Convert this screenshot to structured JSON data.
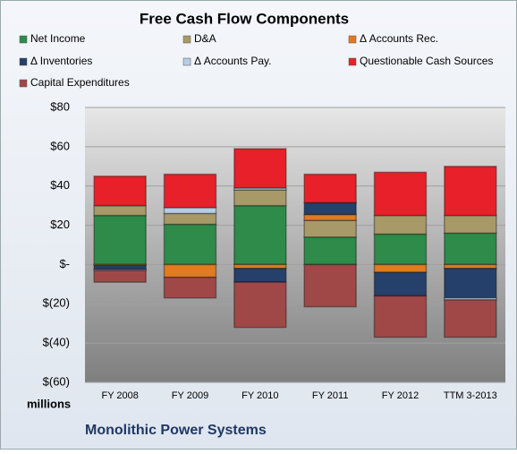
{
  "chart_data": {
    "type": "stacked-bar",
    "title": "Free Cash Flow Components",
    "y_unit_label": "millions",
    "company": "Monolithic Power Systems",
    "categories": [
      "FY 2008",
      "FY 2009",
      "FY 2010",
      "FY 2011",
      "FY 2012",
      "TTM 3-2013"
    ],
    "series": [
      {
        "name": "Net Income",
        "color": "#2e8b4a",
        "values": [
          25,
          20.5,
          30,
          14,
          15.5,
          16
        ]
      },
      {
        "name": "D&A",
        "color": "#a89a68",
        "values": [
          5,
          5.5,
          8,
          8.5,
          9.5,
          9
        ]
      },
      {
        "name": "Δ Accounts Rec.",
        "color": "#e07b20",
        "values": [
          -0.5,
          -6.5,
          -2,
          3,
          -4,
          -2
        ]
      },
      {
        "name": "Δ Inventories",
        "color": "#25406a",
        "values": [
          -2,
          0,
          -7,
          6,
          -12,
          -15
        ]
      },
      {
        "name": "Δ Accounts Pay.",
        "color": "#b8cce4",
        "values": [
          -0.5,
          3,
          1,
          0,
          0,
          -1
        ]
      },
      {
        "name": "Questionable Cash Sources",
        "color": "#e8202a",
        "values": [
          15,
          17,
          20,
          14.5,
          22,
          25
        ]
      },
      {
        "name": "Capital Expenditures",
        "color": "#a04848",
        "values": [
          -6,
          -10.5,
          -23,
          -21.5,
          -21,
          -19
        ]
      }
    ],
    "ylim": [
      -60,
      80
    ],
    "yticks": [
      {
        "value": -60,
        "label": "$(60)"
      },
      {
        "value": -40,
        "label": "$(40)"
      },
      {
        "value": -20,
        "label": "$(20)"
      },
      {
        "value": 0,
        "label": "$-"
      },
      {
        "value": 20,
        "label": "$20"
      },
      {
        "value": 40,
        "label": "$40"
      },
      {
        "value": 60,
        "label": "$60"
      },
      {
        "value": 80,
        "label": "$80"
      }
    ],
    "grid": true
  }
}
